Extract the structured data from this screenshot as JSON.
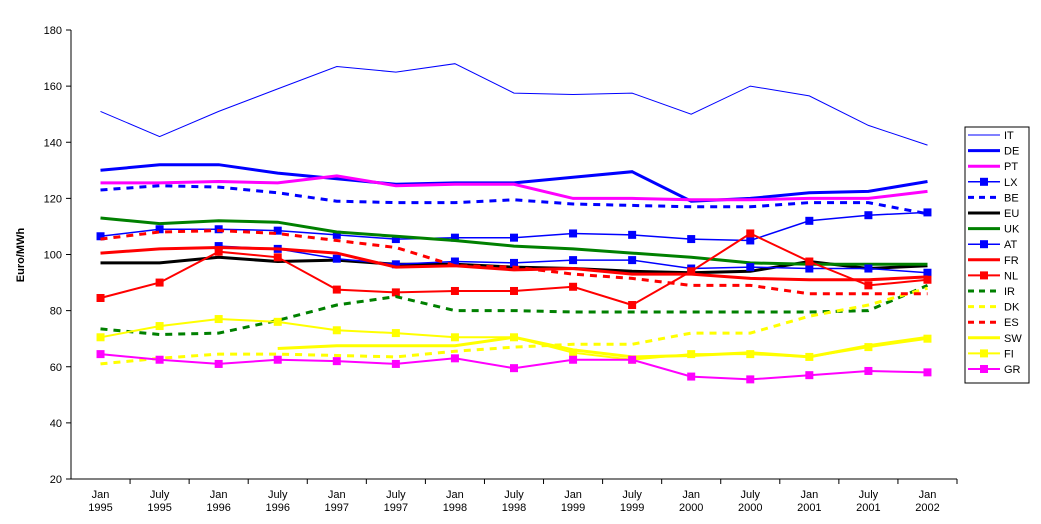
{
  "chart_data": {
    "type": "line",
    "ylabel": "Euro/MWh",
    "categories": [
      "Jan 1995",
      "July 1995",
      "Jan 1996",
      "July 1996",
      "Jan 1997",
      "July 1997",
      "Jan 1998",
      "July 1998",
      "Jan 1999",
      "July 1999",
      "Jan 2000",
      "July 2000",
      "Jan 2001",
      "July 2001",
      "Jan 2002"
    ],
    "ylim": [
      20,
      180
    ],
    "yticks": [
      20,
      40,
      60,
      80,
      100,
      120,
      140,
      160,
      180
    ],
    "grid": false,
    "legend": "right",
    "series": [
      {
        "name": "IT",
        "color": "#0000ff",
        "linewidth": 1,
        "values": [
          151,
          142,
          151,
          159,
          167,
          165,
          168,
          157.5,
          157,
          157.5,
          150,
          160,
          156.5,
          146,
          139
        ]
      },
      {
        "name": "DE",
        "color": "#0000ff",
        "linewidth": 3,
        "values": [
          130,
          132,
          132,
          129,
          127,
          125,
          125.5,
          125.5,
          127.5,
          129.5,
          119,
          120,
          122,
          122.5,
          126
        ]
      },
      {
        "name": "PT",
        "color": "#ff00ff",
        "linewidth": 3,
        "values": [
          125.5,
          125.5,
          126,
          125.5,
          128,
          124.5,
          125,
          125,
          120,
          120,
          119.5,
          119.5,
          120,
          120,
          122.5
        ]
      },
      {
        "name": "LX",
        "color": "#0000ff",
        "linewidth": 1.5,
        "marker": "square",
        "values": [
          106.5,
          109,
          109,
          108.5,
          107,
          105.5,
          106,
          106,
          107.5,
          107,
          105.5,
          105,
          112,
          114,
          115
        ]
      },
      {
        "name": "BE",
        "color": "#0000ff",
        "linewidth": 3,
        "dashed": true,
        "values": [
          123,
          124.5,
          124,
          122,
          119,
          118.5,
          118.5,
          119.5,
          118,
          117.5,
          117,
          117,
          118.5,
          118.5,
          114.5
        ]
      },
      {
        "name": "EU",
        "color": "#000000",
        "linewidth": 3,
        "values": [
          97,
          97,
          99,
          97.5,
          98,
          96.5,
          96.5,
          95.5,
          95,
          94,
          93.5,
          94,
          97.5,
          95,
          96
        ]
      },
      {
        "name": "UK",
        "color": "#008000",
        "linewidth": 3,
        "values": [
          113,
          111,
          112,
          111.5,
          108,
          106.5,
          105,
          103,
          102,
          100.5,
          99,
          97,
          96.5,
          96.5,
          96.5
        ]
      },
      {
        "name": "AT",
        "color": "#0000ff",
        "linewidth": 1.5,
        "marker": "square",
        "values": [
          null,
          null,
          103,
          102,
          98.5,
          96.5,
          97.5,
          97,
          98,
          98,
          95,
          95.5,
          95,
          95,
          93.5
        ]
      },
      {
        "name": "FR",
        "color": "#ff0000",
        "linewidth": 3,
        "values": [
          100.5,
          102,
          102.5,
          102,
          100.5,
          95.5,
          96,
          94.5,
          95,
          93,
          93,
          91.5,
          91,
          91,
          92
        ]
      },
      {
        "name": "NL",
        "color": "#ff0000",
        "linewidth": 2,
        "marker": "square",
        "values": [
          84.5,
          90,
          101,
          99,
          87.5,
          86.5,
          87,
          87,
          88.5,
          82,
          94,
          107.5,
          97.5,
          89,
          91
        ]
      },
      {
        "name": "IR",
        "color": "#008000",
        "linewidth": 3,
        "dashed": true,
        "values": [
          73.5,
          71.5,
          72,
          76.5,
          82,
          85,
          80,
          80,
          79.5,
          79.5,
          79.5,
          79.5,
          79.5,
          80,
          89
        ]
      },
      {
        "name": "DK",
        "color": "#ffff00",
        "linewidth": 3,
        "dashed": true,
        "values": [
          61,
          63,
          64.5,
          64.5,
          64,
          63.5,
          65.5,
          67,
          68,
          68,
          72,
          72,
          78,
          82,
          88
        ]
      },
      {
        "name": "ES",
        "color": "#ff0000",
        "linewidth": 3,
        "dashed": true,
        "values": [
          105.5,
          108,
          108.5,
          107.5,
          105,
          102.5,
          96,
          95.5,
          93,
          91.5,
          89,
          89,
          86,
          86,
          86
        ]
      },
      {
        "name": "SW",
        "color": "#ffff00",
        "linewidth": 3,
        "values": [
          null,
          null,
          null,
          66.5,
          67.5,
          67.5,
          67.5,
          70.5,
          66,
          63.5,
          64,
          65,
          63.5,
          67.5,
          70.5
        ]
      },
      {
        "name": "FI",
        "color": "#ffff00",
        "linewidth": 2,
        "marker": "square",
        "values": [
          70.5,
          74.5,
          77,
          76,
          73,
          72,
          70.5,
          70.5,
          65,
          62.5,
          64.5,
          64.5,
          63.5,
          67,
          70
        ]
      },
      {
        "name": "GR",
        "color": "#ff00ff",
        "linewidth": 2,
        "marker": "square",
        "values": [
          64.5,
          62.5,
          61,
          62.5,
          62,
          61,
          63,
          59.5,
          62.5,
          62.5,
          56.5,
          55.5,
          57,
          58.5,
          58
        ]
      }
    ]
  }
}
